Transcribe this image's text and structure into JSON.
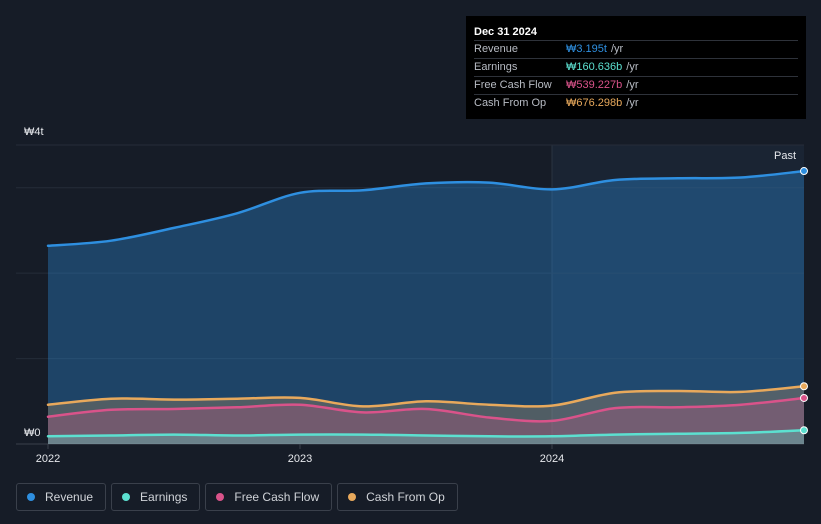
{
  "tooltip": {
    "date": "Dec 31 2024",
    "unit": "/yr",
    "rows": [
      {
        "label": "Revenue",
        "value": "₩3.195t",
        "color": "#2e8fe0"
      },
      {
        "label": "Earnings",
        "value": "₩160.636b",
        "color": "#5ce0d0"
      },
      {
        "label": "Free Cash Flow",
        "value": "₩539.227b",
        "color": "#d9538a"
      },
      {
        "label": "Cash From Op",
        "value": "₩676.298b",
        "color": "#e8a95c"
      }
    ]
  },
  "past_label": "Past",
  "chart_data": {
    "type": "area",
    "y_top_label": "₩4t",
    "y_bottom_label": "₩0",
    "ylim": [
      0,
      3.5
    ],
    "xlim": [
      2022,
      2025.0
    ],
    "x_ticks": [
      {
        "value": 2022,
        "label": "2022"
      },
      {
        "value": 2023,
        "label": "2023"
      },
      {
        "value": 2024,
        "label": "2024"
      }
    ],
    "past_start": 2024.0,
    "series": [
      {
        "name": "Revenue",
        "color": "#2e8fe0",
        "x": [
          2022.0,
          2022.25,
          2022.5,
          2022.75,
          2023.0,
          2023.25,
          2023.5,
          2023.75,
          2024.0,
          2024.25,
          2024.5,
          2024.75,
          2025.0
        ],
        "y": [
          2.32,
          2.38,
          2.53,
          2.7,
          2.94,
          2.97,
          3.05,
          3.06,
          2.98,
          3.09,
          3.11,
          3.12,
          3.195
        ]
      },
      {
        "name": "Cash From Op",
        "color": "#e8a95c",
        "x": [
          2022.0,
          2022.25,
          2022.5,
          2022.75,
          2023.0,
          2023.25,
          2023.5,
          2023.75,
          2024.0,
          2024.25,
          2024.5,
          2024.75,
          2025.0
        ],
        "y": [
          0.46,
          0.53,
          0.52,
          0.53,
          0.54,
          0.44,
          0.5,
          0.46,
          0.45,
          0.6,
          0.62,
          0.61,
          0.676
        ]
      },
      {
        "name": "Free Cash Flow",
        "color": "#d9538a",
        "x": [
          2022.0,
          2022.25,
          2022.5,
          2022.75,
          2023.0,
          2023.25,
          2023.5,
          2023.75,
          2024.0,
          2024.25,
          2024.5,
          2024.75,
          2025.0
        ],
        "y": [
          0.32,
          0.4,
          0.41,
          0.43,
          0.46,
          0.37,
          0.41,
          0.31,
          0.27,
          0.42,
          0.43,
          0.46,
          0.539
        ]
      },
      {
        "name": "Earnings",
        "color": "#5ce0d0",
        "x": [
          2022.0,
          2022.25,
          2022.5,
          2022.75,
          2023.0,
          2023.25,
          2023.5,
          2023.75,
          2024.0,
          2024.25,
          2024.5,
          2024.75,
          2025.0
        ],
        "y": [
          0.09,
          0.1,
          0.11,
          0.1,
          0.11,
          0.11,
          0.1,
          0.09,
          0.09,
          0.11,
          0.12,
          0.13,
          0.161
        ]
      }
    ],
    "legend": [
      "Revenue",
      "Earnings",
      "Free Cash Flow",
      "Cash From Op"
    ]
  }
}
